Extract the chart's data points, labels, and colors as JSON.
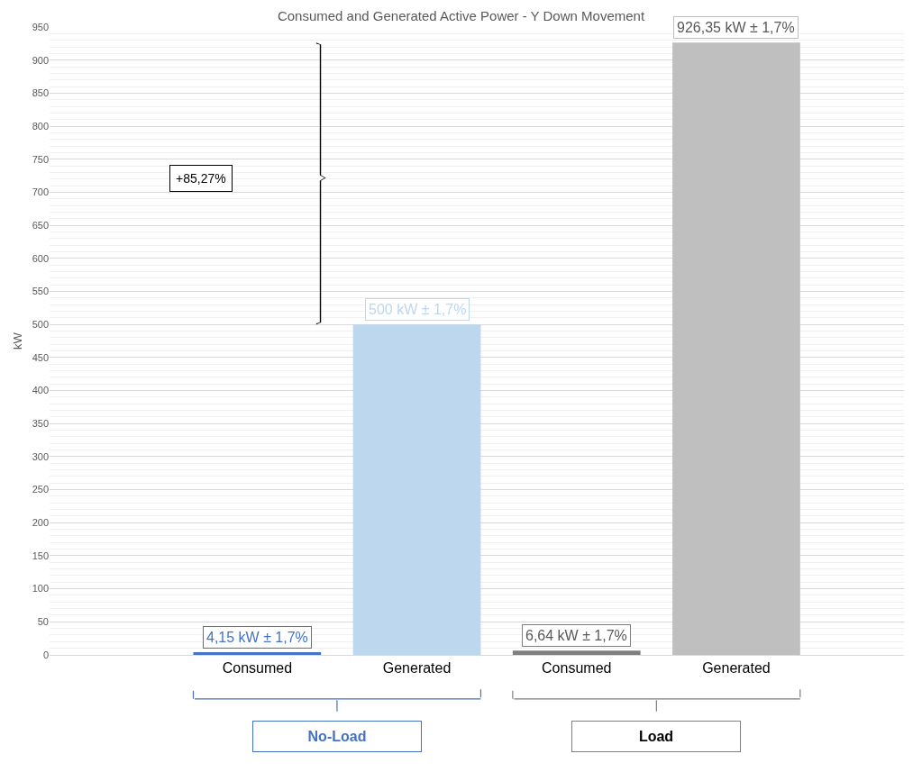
{
  "chart_data": {
    "type": "bar",
    "title": "Consumed and Generated Active Power - Y Down Movement",
    "ylabel": "kW",
    "categories": [
      "Consumed",
      "Generated",
      "Consumed",
      "Generated"
    ],
    "values": [
      4.15,
      500,
      6.64,
      926.35
    ],
    "colors": [
      "#4472c4",
      "#bdd7ee",
      "#7f7f7f",
      "#bfbfbf"
    ],
    "value_labels": [
      "4,15 kW ± 1,7%",
      "500 kW ± 1,7%",
      "6,64 kW ± 1,7%",
      "926,35 kW ± 1,7%"
    ],
    "ylim": [
      0,
      950
    ],
    "yticks": [
      0,
      50,
      100,
      150,
      200,
      250,
      300,
      350,
      400,
      450,
      500,
      550,
      600,
      650,
      700,
      750,
      800,
      850,
      900,
      950
    ],
    "grid": "y",
    "annotations": [
      "+85,27%",
      "No-Load",
      "Load"
    ]
  }
}
